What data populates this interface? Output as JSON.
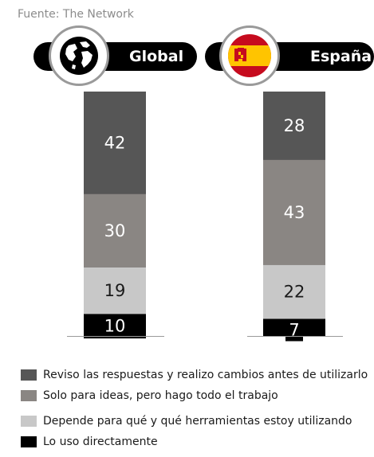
{
  "source": "Fuente: The Network",
  "colors": {
    "background": "#ffffff",
    "pill": "#000000",
    "series": [
      "#565656",
      "#8a8683",
      "#c8c8c8",
      "#000000"
    ]
  },
  "chart_data": {
    "type": "bar",
    "stacked": true,
    "categories": [
      "Global",
      "España"
    ],
    "series": [
      {
        "name": "Reviso las respuestas y realizo cambios antes de utilizarlo",
        "values": [
          42,
          28
        ]
      },
      {
        "name": "Solo para ideas, pero hago todo el trabajo",
        "values": [
          30,
          43
        ]
      },
      {
        "name": "Depende para qué y qué herramientas estoy utilizando",
        "values": [
          19,
          22
        ]
      },
      {
        "name": "Lo uso directamente",
        "values": [
          10,
          7
        ]
      }
    ],
    "title": "",
    "xlabel": "",
    "ylabel": "",
    "legend": "bottom",
    "grid": false
  },
  "headers": [
    {
      "label": "Global",
      "icon": "globe-icon"
    },
    {
      "label": "España",
      "icon": "spain-flag-icon"
    }
  ]
}
